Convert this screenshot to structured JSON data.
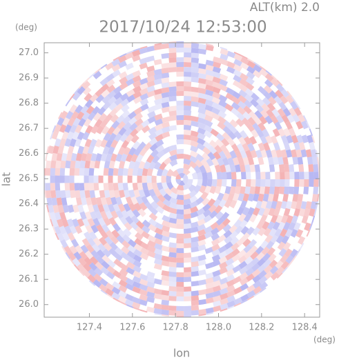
{
  "chart_data": {
    "type": "ppi",
    "title": "2017/10/24 12:53:00",
    "subtitle": "ALT(km) 2.0",
    "x_label": "lon",
    "y_label": "lat",
    "x_unit": "(deg)",
    "y_unit": "(deg)",
    "xlim": [
      127.19,
      128.47
    ],
    "ylim": [
      25.95,
      27.04
    ],
    "xticks": [
      {
        "value": 127.4,
        "label": "127.4"
      },
      {
        "value": 127.6,
        "label": "127.6"
      },
      {
        "value": 127.8,
        "label": "127.8"
      },
      {
        "value": 128.0,
        "label": "128.0"
      },
      {
        "value": 128.2,
        "label": "128.2"
      },
      {
        "value": 128.4,
        "label": "128.4"
      }
    ],
    "yticks": [
      {
        "value": 26.0,
        "label": "26.0"
      },
      {
        "value": 26.1,
        "label": "26.1"
      },
      {
        "value": 26.2,
        "label": "26.2"
      },
      {
        "value": 26.3,
        "label": "26.3"
      },
      {
        "value": 26.4,
        "label": "26.4"
      },
      {
        "value": 26.5,
        "label": "26.5"
      },
      {
        "value": 26.6,
        "label": "26.6"
      },
      {
        "value": 26.7,
        "label": "26.7"
      },
      {
        "value": 26.8,
        "label": "26.8"
      },
      {
        "value": 26.9,
        "label": "26.9"
      },
      {
        "value": 27.0,
        "label": "27.0"
      }
    ],
    "colors": [
      "#f2a3a6",
      "#aaaaf0"
    ]
  }
}
